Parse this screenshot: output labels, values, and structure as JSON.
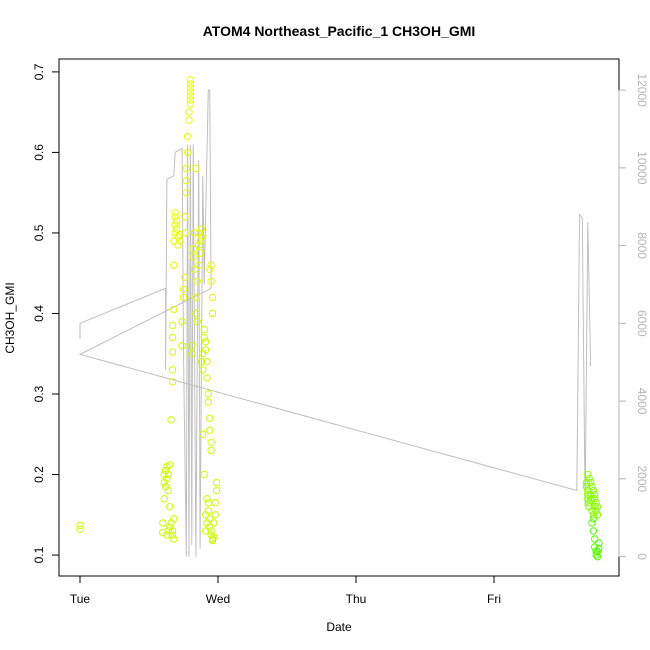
{
  "chart_data": {
    "type": "scatter",
    "title": "ATOM4 Northeast_Pacific_1 CH3OH_GMI",
    "xlabel": "Date",
    "ylabel": "CH3OH_GMI",
    "xlim": [
      -0.04,
      3.67
    ],
    "ylim": [
      0.074,
      0.716
    ],
    "x_ticks": [
      {
        "value": 0,
        "label": "Tue"
      },
      {
        "value": 1,
        "label": "Wed"
      },
      {
        "value": 2,
        "label": "Thu"
      },
      {
        "value": 3,
        "label": "Fri"
      }
    ],
    "y_ticks": [
      0.1,
      0.2,
      0.3,
      0.4,
      0.5,
      0.6,
      0.7
    ],
    "y2_range": [
      -500,
      12800
    ],
    "y2_ticks": [
      0,
      2000,
      4000,
      6000,
      8000,
      10000,
      12000
    ],
    "grid": false,
    "colors": {
      "point_low": "#ccff00",
      "point_high": "#e6ff00",
      "point_late": "#66ff00",
      "altitude_line": "#bfbfbf",
      "right_axis": "#b5b5b5"
    },
    "series": [
      {
        "role": "points",
        "points": [
          [
            0.0,
            0.132
          ],
          [
            0.0,
            0.137
          ],
          [
            0.6,
            0.128
          ],
          [
            0.6,
            0.14
          ],
          [
            0.61,
            0.17
          ],
          [
            0.61,
            0.19
          ],
          [
            0.61,
            0.2
          ],
          [
            0.62,
            0.185
          ],
          [
            0.62,
            0.205
          ],
          [
            0.63,
            0.195
          ],
          [
            0.63,
            0.21
          ],
          [
            0.64,
            0.2
          ],
          [
            0.64,
            0.18
          ],
          [
            0.65,
            0.16
          ],
          [
            0.65,
            0.212
          ],
          [
            0.63,
            0.125
          ],
          [
            0.64,
            0.13
          ],
          [
            0.65,
            0.135
          ],
          [
            0.66,
            0.14
          ],
          [
            0.67,
            0.125
          ],
          [
            0.67,
            0.13
          ],
          [
            0.68,
            0.145
          ],
          [
            0.68,
            0.12
          ],
          [
            0.66,
            0.268
          ],
          [
            0.67,
            0.315
          ],
          [
            0.67,
            0.33
          ],
          [
            0.67,
            0.352
          ],
          [
            0.67,
            0.37
          ],
          [
            0.67,
            0.385
          ],
          [
            0.68,
            0.405
          ],
          [
            0.68,
            0.46
          ],
          [
            0.68,
            0.49
          ],
          [
            0.69,
            0.5
          ],
          [
            0.69,
            0.51
          ],
          [
            0.69,
            0.52
          ],
          [
            0.69,
            0.525
          ],
          [
            0.7,
            0.515
          ],
          [
            0.7,
            0.505
          ],
          [
            0.71,
            0.495
          ],
          [
            0.71,
            0.485
          ],
          [
            0.72,
            0.49
          ],
          [
            0.72,
            0.498
          ],
          [
            0.74,
            0.36
          ],
          [
            0.74,
            0.39
          ],
          [
            0.75,
            0.42
          ],
          [
            0.75,
            0.43
          ],
          [
            0.76,
            0.445
          ],
          [
            0.76,
            0.5
          ],
          [
            0.76,
            0.52
          ],
          [
            0.77,
            0.55
          ],
          [
            0.77,
            0.565
          ],
          [
            0.77,
            0.58
          ],
          [
            0.78,
            0.6
          ],
          [
            0.78,
            0.62
          ],
          [
            0.79,
            0.64
          ],
          [
            0.79,
            0.65
          ],
          [
            0.8,
            0.66
          ],
          [
            0.8,
            0.665
          ],
          [
            0.8,
            0.67
          ],
          [
            0.8,
            0.675
          ],
          [
            0.8,
            0.68
          ],
          [
            0.8,
            0.685
          ],
          [
            0.8,
            0.69
          ],
          [
            0.81,
            0.35
          ],
          [
            0.81,
            0.36
          ],
          [
            0.82,
            0.47
          ],
          [
            0.82,
            0.48
          ],
          [
            0.83,
            0.455
          ],
          [
            0.83,
            0.5
          ],
          [
            0.84,
            0.58
          ],
          [
            0.84,
            0.42
          ],
          [
            0.84,
            0.4
          ],
          [
            0.85,
            0.39
          ],
          [
            0.85,
            0.44
          ],
          [
            0.86,
            0.46
          ],
          [
            0.86,
            0.5
          ],
          [
            0.86,
            0.485
          ],
          [
            0.87,
            0.475
          ],
          [
            0.87,
            0.49
          ],
          [
            0.88,
            0.495
          ],
          [
            0.88,
            0.505
          ],
          [
            0.88,
            0.34
          ],
          [
            0.89,
            0.35
          ],
          [
            0.89,
            0.33
          ],
          [
            0.9,
            0.37
          ],
          [
            0.9,
            0.38
          ],
          [
            0.91,
            0.365
          ],
          [
            0.91,
            0.355
          ],
          [
            0.92,
            0.34
          ],
          [
            0.92,
            0.32
          ],
          [
            0.93,
            0.3
          ],
          [
            0.93,
            0.29
          ],
          [
            0.94,
            0.27
          ],
          [
            0.94,
            0.255
          ],
          [
            0.95,
            0.24
          ],
          [
            0.95,
            0.23
          ],
          [
            0.89,
            0.25
          ],
          [
            0.9,
            0.2
          ],
          [
            0.91,
            0.15
          ],
          [
            0.91,
            0.13
          ],
          [
            0.92,
            0.17
          ],
          [
            0.92,
            0.14
          ],
          [
            0.93,
            0.155
          ],
          [
            0.93,
            0.165
          ],
          [
            0.94,
            0.145
          ],
          [
            0.94,
            0.135
          ],
          [
            0.95,
            0.125
          ],
          [
            0.95,
            0.13
          ],
          [
            0.96,
            0.12
          ],
          [
            0.96,
            0.118
          ],
          [
            0.97,
            0.122
          ],
          [
            0.97,
            0.14
          ],
          [
            0.98,
            0.15
          ],
          [
            0.98,
            0.165
          ],
          [
            0.99,
            0.18
          ],
          [
            0.99,
            0.19
          ],
          [
            0.94,
            0.455
          ],
          [
            0.95,
            0.44
          ],
          [
            0.95,
            0.46
          ],
          [
            0.96,
            0.42
          ],
          [
            0.96,
            0.4
          ]
        ]
      },
      {
        "role": "points-late",
        "points": [
          [
            3.67,
            0.19
          ],
          [
            3.67,
            0.185
          ],
          [
            3.68,
            0.18
          ],
          [
            3.68,
            0.175
          ],
          [
            3.68,
            0.17
          ],
          [
            3.69,
            0.165
          ],
          [
            3.69,
            0.16
          ],
          [
            3.7,
            0.168
          ],
          [
            3.7,
            0.175
          ],
          [
            3.71,
            0.17
          ],
          [
            3.71,
            0.155
          ],
          [
            3.72,
            0.15
          ],
          [
            3.72,
            0.145
          ],
          [
            3.73,
            0.16
          ],
          [
            3.73,
            0.17
          ],
          [
            3.68,
            0.2
          ],
          [
            3.69,
            0.195
          ],
          [
            3.7,
            0.19
          ],
          [
            3.71,
            0.185
          ],
          [
            3.72,
            0.18
          ],
          [
            3.73,
            0.175
          ],
          [
            3.74,
            0.165
          ],
          [
            3.74,
            0.155
          ],
          [
            3.75,
            0.16
          ],
          [
            3.75,
            0.15
          ],
          [
            3.71,
            0.14
          ],
          [
            3.72,
            0.13
          ],
          [
            3.73,
            0.12
          ],
          [
            3.73,
            0.11
          ],
          [
            3.74,
            0.105
          ],
          [
            3.74,
            0.1
          ],
          [
            3.75,
            0.098
          ],
          [
            3.75,
            0.104
          ],
          [
            3.76,
            0.108
          ],
          [
            3.76,
            0.115
          ]
        ]
      },
      {
        "role": "altitude",
        "points": [
          [
            0.0,
            5600
          ],
          [
            0.0,
            6000
          ],
          [
            0.62,
            6900
          ],
          [
            0.62,
            4800
          ],
          [
            0.63,
            9700
          ],
          [
            0.68,
            9800
          ],
          [
            0.69,
            10400
          ],
          [
            0.74,
            10500
          ],
          [
            0.75,
            5300
          ],
          [
            0.77,
            0
          ],
          [
            0.78,
            10600
          ],
          [
            0.79,
            0
          ],
          [
            0.8,
            10600
          ],
          [
            0.81,
            300
          ],
          [
            0.82,
            10600
          ],
          [
            0.84,
            0
          ],
          [
            0.86,
            10200
          ],
          [
            0.87,
            200
          ],
          [
            0.89,
            9800
          ],
          [
            0.9,
            7000
          ],
          [
            0.93,
            12000
          ],
          [
            0.94,
            12000
          ],
          [
            0.95,
            6900
          ],
          [
            0.0,
            5200
          ],
          [
            3.6,
            1700
          ],
          [
            3.62,
            8800
          ],
          [
            3.64,
            8700
          ],
          [
            3.66,
            1300
          ],
          [
            3.68,
            8600
          ],
          [
            3.7,
            4900
          ]
        ]
      }
    ]
  }
}
